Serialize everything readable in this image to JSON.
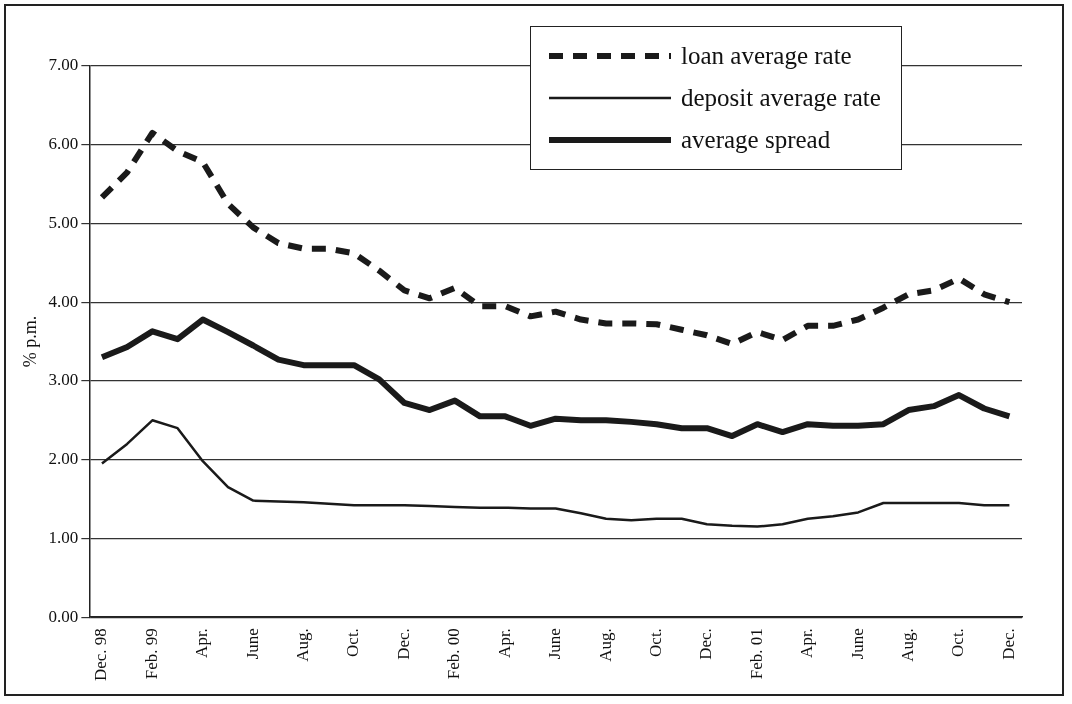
{
  "chart_data": {
    "type": "line",
    "ylabel": "% p.m.",
    "categories": [
      "Dec. 98",
      null,
      "Feb. 99",
      null,
      "Apr.",
      null,
      "June",
      null,
      "Aug.",
      null,
      "Oct.",
      null,
      "Dec.",
      null,
      "Feb. 00",
      null,
      "Apr.",
      null,
      "June",
      null,
      "Aug.",
      null,
      "Oct.",
      null,
      "Dec.",
      null,
      "Feb. 01",
      null,
      "Apr.",
      null,
      "June",
      null,
      "Aug.",
      null,
      "Oct.",
      null,
      "Dec."
    ],
    "series": [
      {
        "name": "loan average rate",
        "color": "#1a1a1a",
        "line_style": "dashed",
        "values": [
          5.33,
          5.65,
          6.15,
          5.92,
          5.78,
          5.25,
          4.95,
          4.75,
          4.68,
          4.68,
          4.62,
          4.4,
          4.15,
          4.05,
          4.18,
          3.95,
          3.95,
          3.82,
          3.88,
          3.78,
          3.73,
          3.73,
          3.72,
          3.65,
          3.58,
          3.47,
          3.62,
          3.52,
          3.7,
          3.7,
          3.78,
          3.93,
          4.1,
          4.15,
          4.3,
          4.1,
          4.0
        ]
      },
      {
        "name": "deposit average rate",
        "color": "#1a1a1a",
        "line_style": "solid",
        "values": [
          1.95,
          2.2,
          2.5,
          2.4,
          1.98,
          1.65,
          1.48,
          1.47,
          1.46,
          1.44,
          1.42,
          1.42,
          1.42,
          1.41,
          1.4,
          1.39,
          1.39,
          1.38,
          1.38,
          1.32,
          1.25,
          1.23,
          1.25,
          1.25,
          1.18,
          1.16,
          1.15,
          1.18,
          1.25,
          1.28,
          1.33,
          1.45,
          1.45,
          1.45,
          1.45,
          1.42,
          1.42
        ]
      },
      {
        "name": "average spread",
        "color": "#1a1a1a",
        "line_style": "solid",
        "values": [
          3.3,
          3.43,
          3.63,
          3.53,
          3.78,
          3.62,
          3.45,
          3.27,
          3.2,
          3.2,
          3.2,
          3.02,
          2.72,
          2.63,
          2.75,
          2.55,
          2.55,
          2.43,
          2.52,
          2.5,
          2.5,
          2.48,
          2.45,
          2.4,
          2.4,
          2.3,
          2.45,
          2.35,
          2.45,
          2.43,
          2.43,
          2.45,
          2.63,
          2.68,
          2.82,
          2.65,
          2.55
        ]
      }
    ],
    "ylim": [
      0,
      7
    ],
    "yticks": [
      {
        "value": 0,
        "label": "0.00"
      },
      {
        "value": 1,
        "label": "1.00"
      },
      {
        "value": 2,
        "label": "2.00"
      },
      {
        "value": 3,
        "label": "3.00"
      },
      {
        "value": 4,
        "label": "4.00"
      },
      {
        "value": 5,
        "label": "5.00"
      },
      {
        "value": 6,
        "label": "6.00"
      },
      {
        "value": 7,
        "label": "7.00"
      }
    ],
    "grid": "y",
    "legend": "top right",
    "marker": "none"
  }
}
